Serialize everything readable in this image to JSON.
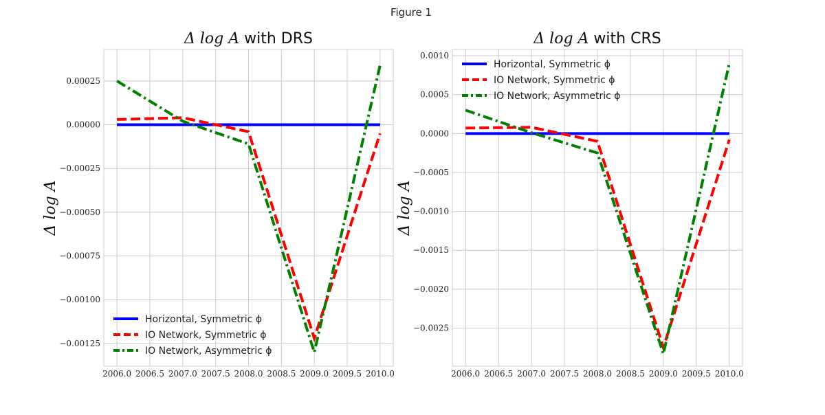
{
  "figure_title": "Figure 1",
  "chart_data": [
    {
      "type": "line",
      "title_math": "Δ log A",
      "title_text": " with DRS",
      "xlabel": "",
      "ylabel": "Δ log A",
      "x": [
        2006.0,
        2007.0,
        2008.0,
        2009.0,
        2010.0
      ],
      "xlim": [
        2005.8,
        2010.2
      ],
      "ylim": [
        -0.00138,
        0.00043
      ],
      "xticks": [
        2006.0,
        2006.5,
        2007.0,
        2007.5,
        2008.0,
        2008.5,
        2009.0,
        2009.5,
        2010.0
      ],
      "xtick_labels": [
        "2006.0",
        "2006.5",
        "2007.0",
        "2007.5",
        "2008.0",
        "2008.5",
        "2009.0",
        "2009.5",
        "2010.0"
      ],
      "yticks": [
        0.00025,
        0.0,
        -0.00025,
        -0.0005,
        -0.00075,
        -0.001,
        -0.00125
      ],
      "ytick_labels": [
        "0.00025",
        "0.00000",
        "−0.00025",
        "−0.00050",
        "−0.00075",
        "−0.00100",
        "−0.00125"
      ],
      "grid": true,
      "legend_position": "lower-left",
      "series": [
        {
          "name": "Horizontal, Symmetric ϕ",
          "color": "#0000ff",
          "style": "solid",
          "values": [
            0.0,
            0.0,
            0.0,
            0.0,
            0.0
          ]
        },
        {
          "name": "IO Network, Symmetric ϕ",
          "color": "#ff0000",
          "style": "dashed",
          "values": [
            3e-05,
            4e-05,
            -4e-05,
            -0.00122,
            -5e-05
          ]
        },
        {
          "name": "IO Network, Asymmetric ϕ",
          "color": "#008000",
          "style": "dashdot",
          "values": [
            0.00025,
            2e-05,
            -0.00011,
            -0.0013,
            0.00034
          ]
        }
      ]
    },
    {
      "type": "line",
      "title_math": "Δ log A",
      "title_text": " with CRS",
      "xlabel": "",
      "ylabel": "Δ log A",
      "x": [
        2006.0,
        2007.0,
        2008.0,
        2009.0,
        2010.0
      ],
      "xlim": [
        2005.8,
        2010.2
      ],
      "ylim": [
        -0.00299,
        0.00108
      ],
      "xticks": [
        2006.0,
        2006.5,
        2007.0,
        2007.5,
        2008.0,
        2008.5,
        2009.0,
        2009.5,
        2010.0
      ],
      "xtick_labels": [
        "2006.0",
        "2006.5",
        "2007.0",
        "2007.5",
        "2008.0",
        "2008.5",
        "2009.0",
        "2009.5",
        "2010.0"
      ],
      "yticks": [
        0.001,
        0.0005,
        0.0,
        -0.0005,
        -0.001,
        -0.0015,
        -0.002,
        -0.0025
      ],
      "ytick_labels": [
        "0.0010",
        "0.0005",
        "0.0000",
        "−0.0005",
        "−0.0010",
        "−0.0015",
        "−0.0020",
        "−0.0025"
      ],
      "grid": true,
      "legend_position": "upper-left",
      "series": [
        {
          "name": "Horizontal, Symmetric ϕ",
          "color": "#0000ff",
          "style": "solid",
          "values": [
            0.0,
            0.0,
            0.0,
            0.0,
            0.0
          ]
        },
        {
          "name": "IO Network, Symmetric ϕ",
          "color": "#ff0000",
          "style": "dashed",
          "values": [
            7e-05,
            8e-05,
            -0.0001,
            -0.00275,
            -8e-05
          ]
        },
        {
          "name": "IO Network, Asymmetric ϕ",
          "color": "#008000",
          "style": "dashdot",
          "values": [
            0.0003,
            1e-05,
            -0.00025,
            -0.00283,
            0.0009
          ]
        }
      ]
    }
  ]
}
